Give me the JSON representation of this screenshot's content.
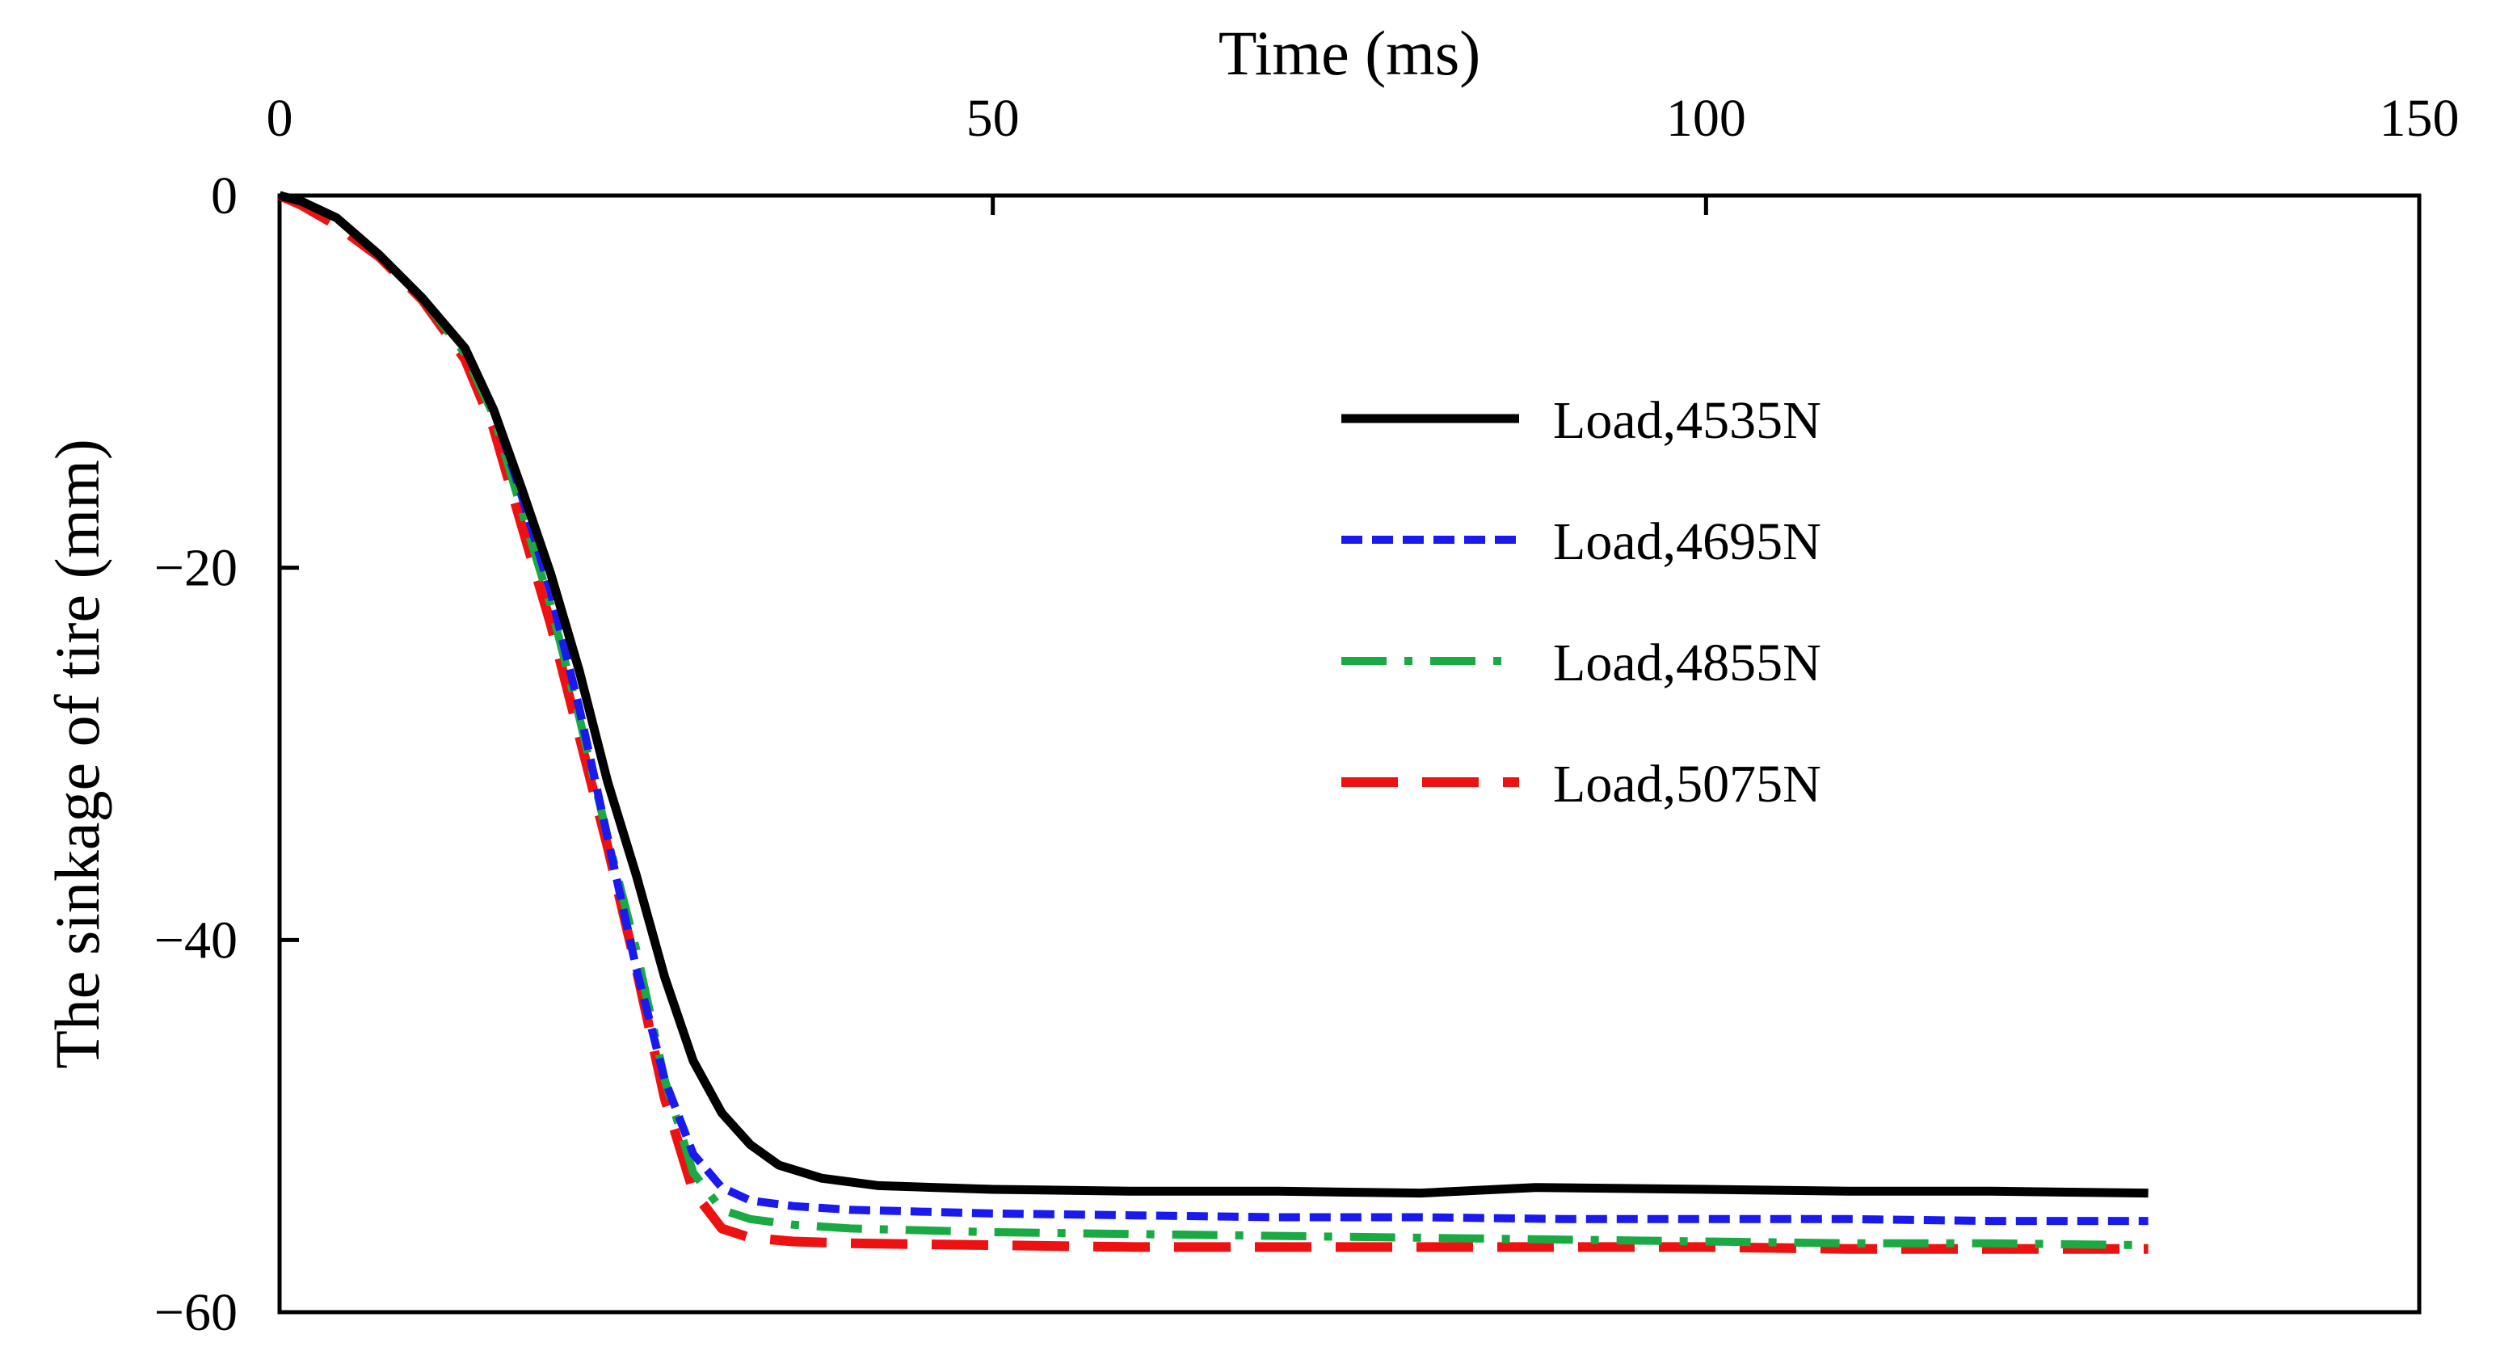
{
  "chart_data": {
    "type": "line",
    "title": "",
    "xlabel": "Time (ms)",
    "ylabel": "The sinkage of tire (mm)",
    "xlim": [
      0,
      150
    ],
    "ylim": [
      -60,
      0
    ],
    "x_axis_position": "top",
    "x_ticks": [
      0,
      50,
      100,
      150
    ],
    "x_tick_labels": [
      "0",
      "50",
      "100",
      "150"
    ],
    "y_ticks": [
      0,
      -20,
      -40,
      -60
    ],
    "y_tick_labels": [
      "0",
      "−20",
      "−40",
      "−60"
    ],
    "grid": false,
    "legend_position": "upper-right",
    "series": [
      {
        "name": "Load,4535N",
        "color": "#000000",
        "dash": "solid",
        "points": [
          [
            0,
            0
          ],
          [
            1.5,
            -0.3
          ],
          [
            4,
            -1.2
          ],
          [
            7,
            -3.2
          ],
          [
            10,
            -5.5
          ],
          [
            13,
            -8.2
          ],
          [
            15,
            -11.5
          ],
          [
            17,
            -15.8
          ],
          [
            19,
            -20.3
          ],
          [
            21,
            -25.5
          ],
          [
            23,
            -31.5
          ],
          [
            25,
            -36.5
          ],
          [
            27,
            -42
          ],
          [
            29,
            -46.5
          ],
          [
            31,
            -49.3
          ],
          [
            33,
            -51
          ],
          [
            35,
            -52.1
          ],
          [
            38,
            -52.8
          ],
          [
            42,
            -53.2
          ],
          [
            46,
            -53.3
          ],
          [
            50,
            -53.4
          ],
          [
            60,
            -53.5
          ],
          [
            70,
            -53.5
          ],
          [
            80,
            -53.6
          ],
          [
            88,
            -53.3
          ],
          [
            100,
            -53.4
          ],
          [
            110,
            -53.5
          ],
          [
            120,
            -53.5
          ],
          [
            131,
            -53.6
          ]
        ]
      },
      {
        "name": "Load,4695N",
        "color": "#1a1aee",
        "dash": "short-dash",
        "points": [
          [
            0,
            0
          ],
          [
            1.5,
            -0.3
          ],
          [
            4,
            -1.2
          ],
          [
            7,
            -3.2
          ],
          [
            10,
            -5.5
          ],
          [
            13,
            -8.2
          ],
          [
            15,
            -11.5
          ],
          [
            17,
            -16.2
          ],
          [
            19,
            -21.3
          ],
          [
            21,
            -27.5
          ],
          [
            23,
            -34.5
          ],
          [
            25,
            -41.5
          ],
          [
            27,
            -47.5
          ],
          [
            29,
            -51.5
          ],
          [
            31,
            -53.3
          ],
          [
            33,
            -54
          ],
          [
            36,
            -54.3
          ],
          [
            40,
            -54.5
          ],
          [
            50,
            -54.7
          ],
          [
            60,
            -54.8
          ],
          [
            70,
            -54.9
          ],
          [
            80,
            -54.9
          ],
          [
            90,
            -55
          ],
          [
            100,
            -55
          ],
          [
            110,
            -55
          ],
          [
            120,
            -55.1
          ],
          [
            131,
            -55.1
          ]
        ]
      },
      {
        "name": "Load,4855N",
        "color": "#1aaa44",
        "dash": "dash-dot",
        "points": [
          [
            0,
            0
          ],
          [
            1.5,
            -0.3
          ],
          [
            4,
            -1.2
          ],
          [
            7,
            -3.2
          ],
          [
            10,
            -5.5
          ],
          [
            13,
            -8.5
          ],
          [
            15,
            -11.8
          ],
          [
            17,
            -17
          ],
          [
            19,
            -22
          ],
          [
            21,
            -28
          ],
          [
            23,
            -34.5
          ],
          [
            25,
            -40.5
          ],
          [
            27,
            -47.5
          ],
          [
            29,
            -52.5
          ],
          [
            31,
            -54.5
          ],
          [
            33,
            -55
          ],
          [
            36,
            -55.3
          ],
          [
            40,
            -55.5
          ],
          [
            50,
            -55.7
          ],
          [
            60,
            -55.8
          ],
          [
            70,
            -55.9
          ],
          [
            80,
            -56
          ],
          [
            90,
            -56.1
          ],
          [
            100,
            -56.2
          ],
          [
            110,
            -56.3
          ],
          [
            120,
            -56.3
          ],
          [
            131,
            -56.4
          ]
        ]
      },
      {
        "name": "Load,5075N",
        "color": "#ee1111",
        "dash": "long-dash",
        "points": [
          [
            0,
            0
          ],
          [
            1.5,
            -0.5
          ],
          [
            4,
            -1.6
          ],
          [
            7,
            -3.3
          ],
          [
            10,
            -5.6
          ],
          [
            13,
            -8.8
          ],
          [
            15,
            -12.5
          ],
          [
            17,
            -17.8
          ],
          [
            19,
            -23
          ],
          [
            21,
            -29
          ],
          [
            23,
            -35
          ],
          [
            25,
            -41.5
          ],
          [
            27,
            -48.5
          ],
          [
            29,
            -53.5
          ],
          [
            31,
            -55.5
          ],
          [
            33,
            -56
          ],
          [
            36,
            -56.2
          ],
          [
            40,
            -56.3
          ],
          [
            50,
            -56.4
          ],
          [
            60,
            -56.5
          ],
          [
            70,
            -56.5
          ],
          [
            80,
            -56.5
          ],
          [
            90,
            -56.5
          ],
          [
            100,
            -56.5
          ],
          [
            110,
            -56.6
          ],
          [
            120,
            -56.6
          ],
          [
            131,
            -56.6
          ]
        ]
      }
    ]
  }
}
